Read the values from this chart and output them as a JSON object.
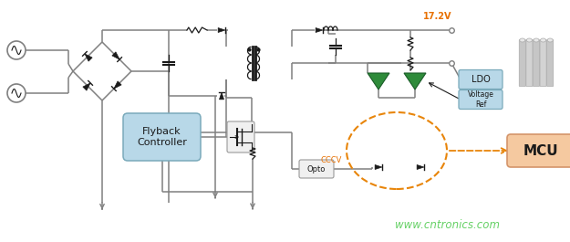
{
  "bg_color": "#ffffff",
  "wire_color": "#808080",
  "black": "#1a1a1a",
  "green": "#2E8B3A",
  "green_edge": "#1a5c28",
  "orange_mcu": "#F5C9A0",
  "orange_mcu_edge": "#D4956A",
  "blue_box": "#B8D8E8",
  "blue_box_edge": "#7AAABB",
  "orange_dashed": "#E8850A",
  "label_17v": "17.2V",
  "label_flyback": "Flyback\nController",
  "label_ldo": "LDO",
  "label_voltage_ref": "Voltage\nRef",
  "label_mcu": "MCU",
  "label_opto": "Opto",
  "label_cccv": "CCCV",
  "label_www": "www.cntronics.com",
  "gray_box": "#f0f0f0",
  "gray_box_edge": "#999999"
}
